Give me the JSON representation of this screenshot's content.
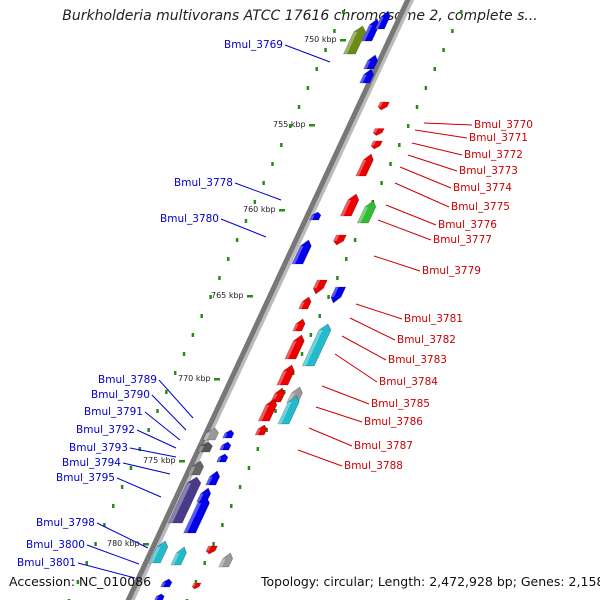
{
  "title": "Burkholderia multivorans ATCC 17616 chromosome 2, complete s...",
  "footer": {
    "accession": "Accession: NC_010086",
    "summary": "Topology: circular; Length: 2,472,928 bp; Genes: 2,158"
  },
  "ticks": [
    "750 kbp",
    "755 kbp",
    "760 kbp",
    "765 kbp",
    "770 kbp",
    "775 kbp",
    "780 kbp"
  ],
  "left_genes": [
    "Bmul_3769",
    "Bmul_3778",
    "Bmul_3780",
    "Bmul_3789",
    "Bmul_3790",
    "Bmul_3791",
    "Bmul_3792",
    "Bmul_3793",
    "Bmul_3794",
    "Bmul_3795",
    "Bmul_3798",
    "Bmul_3800",
    "Bmul_3801"
  ],
  "right_genes": [
    "Bmul_3770",
    "Bmul_3771",
    "Bmul_3772",
    "Bmul_3773",
    "Bmul_3774",
    "Bmul_3775",
    "Bmul_3776",
    "Bmul_3777",
    "Bmul_3779",
    "Bmul_3781",
    "Bmul_3782",
    "Bmul_3783",
    "Bmul_3784",
    "Bmul_3785",
    "Bmul_3786",
    "Bmul_3787",
    "Bmul_3788"
  ],
  "colors": {
    "left_label": "#0000cc",
    "right_label": "#cc0000",
    "backbone": "#777777",
    "tick_dots": "#2a8a1a",
    "forward_gene": "#0000ee",
    "reverse_gene": "#ee0000",
    "rna_gene": "#22bbcc",
    "olive_gene": "#6a8a1a",
    "green_gene": "#33bb33",
    "gray_gene": "#999999",
    "purple_gene": "#4a3a8a"
  }
}
